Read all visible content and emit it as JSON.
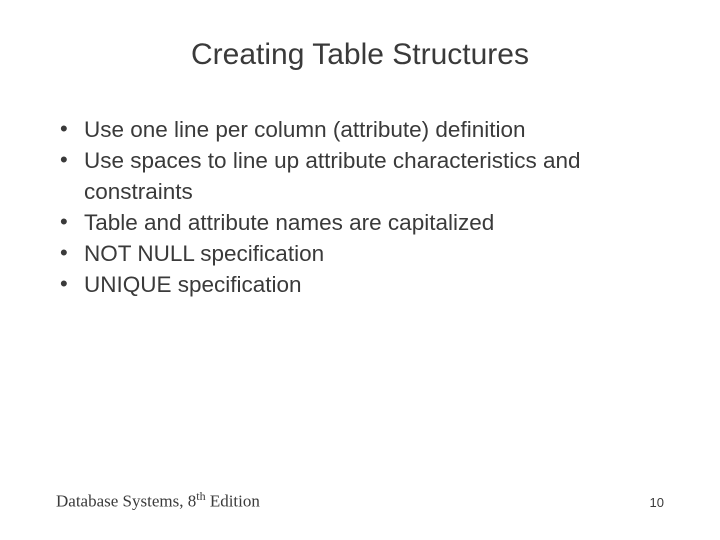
{
  "slide": {
    "title": "Creating Table Structures",
    "bullets": [
      "Use one line per column (attribute) definition",
      "Use spaces to line up attribute characteristics and constraints",
      "Table and attribute names are capitalized",
      "NOT NULL specification",
      "UNIQUE specification"
    ],
    "footer": {
      "source_prefix": "Database Systems, 8",
      "source_ordinal": "th",
      "source_suffix": " Edition",
      "page_number": "10"
    }
  },
  "style": {
    "background_color": "#ffffff",
    "text_color": "#3a3a3a",
    "title_fontsize": 30,
    "body_fontsize": 22.5,
    "footer_left_fontsize": 17,
    "footer_right_fontsize": 13,
    "title_font": "Arial",
    "body_font": "Arial",
    "footer_font": "Times New Roman"
  }
}
